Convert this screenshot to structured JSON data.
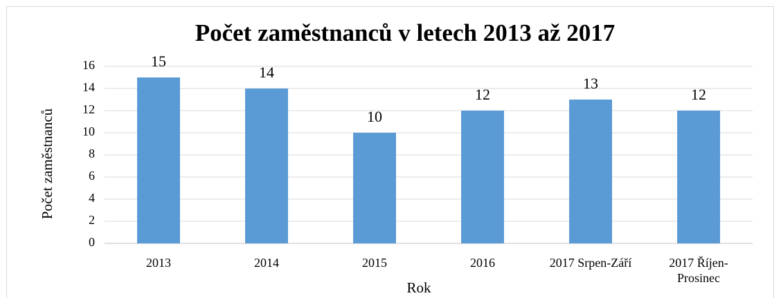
{
  "chart_data": {
    "type": "bar",
    "title": "Počet zaměstnanců v letech 2013 až 2017",
    "x_label": "Rok",
    "y_label": "Počet zaměstnanců",
    "categories": [
      "2013",
      "2014",
      "2015",
      "2016",
      "2017 Srpen-Září",
      "2017 Říjen-Prosinec"
    ],
    "values": [
      15,
      14,
      10,
      12,
      13,
      12
    ],
    "color": "#5b9bd5",
    "ylim": [
      0,
      16
    ],
    "yticks": [
      0,
      2,
      4,
      6,
      8,
      10,
      12,
      14,
      16
    ],
    "grid": true
  }
}
